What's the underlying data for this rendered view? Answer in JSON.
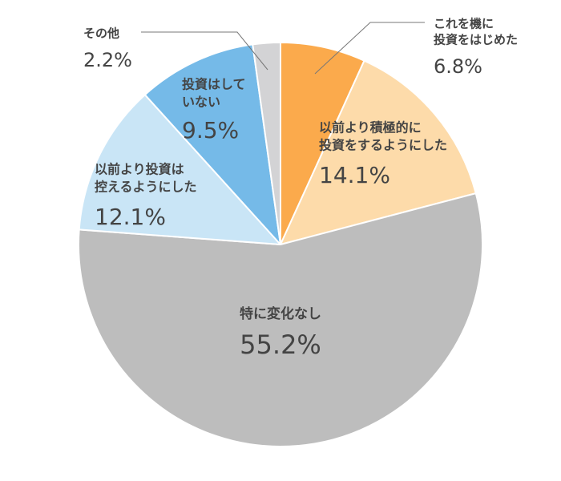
{
  "chart_data": {
    "type": "pie",
    "start": "12 o'clock",
    "direction": "clockwise",
    "slices": [
      {
        "label": [
          "これを機に",
          "投資をはじめた"
        ],
        "value": 6.8,
        "value_text": "6.8%",
        "color": "#FBAA4C"
      },
      {
        "label": [
          "以前より積極的に",
          "投資をするようにした"
        ],
        "value": 14.1,
        "value_text": "14.1%",
        "color": "#FDDBAA"
      },
      {
        "label": [
          "特に変化なし"
        ],
        "value": 55.2,
        "value_text": "55.2%",
        "color": "#BDBDBD"
      },
      {
        "label": [
          "以前より投資は",
          "控えるようにした"
        ],
        "value": 12.1,
        "value_text": "12.1%",
        "color": "#C9E5F6"
      },
      {
        "label": [
          "投資はして",
          "いない"
        ],
        "value": 9.5,
        "value_text": "9.5%",
        "color": "#75BAE8"
      },
      {
        "label": [
          "その他"
        ],
        "value": 2.2,
        "value_text": "2.2%",
        "color": "#D3D3D5"
      }
    ]
  }
}
